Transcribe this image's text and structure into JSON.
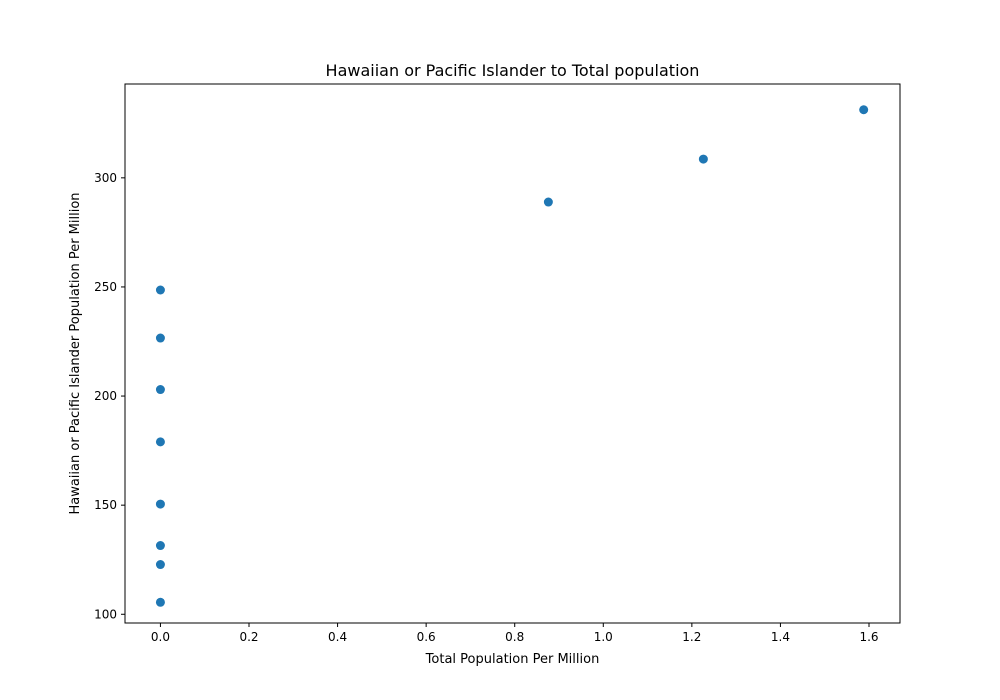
{
  "chart_data": {
    "type": "scatter",
    "title": "Hawaiian or Pacific Islander to Total population",
    "xlabel": "Total Population Per Million",
    "ylabel": "Hawaiian or Pacific Islander Population Per Million",
    "xlim": [
      -0.08,
      1.67
    ],
    "ylim": [
      96,
      343
    ],
    "xticks": [
      0.0,
      0.2,
      0.4,
      0.6,
      0.8,
      1.0,
      1.2,
      1.4,
      1.6
    ],
    "xtick_labels": [
      "0.0",
      "0.2",
      "0.4",
      "0.6",
      "0.8",
      "1.0",
      "1.2",
      "1.4",
      "1.6"
    ],
    "yticks": [
      100,
      150,
      200,
      250,
      300
    ],
    "ytick_labels": [
      "100",
      "150",
      "200",
      "250",
      "300"
    ],
    "grid": false,
    "marker_color": "#1f77b4",
    "points": [
      {
        "x": 0.0,
        "y": 105.5
      },
      {
        "x": 0.0,
        "y": 122.8
      },
      {
        "x": 0.0,
        "y": 131.5
      },
      {
        "x": 0.0,
        "y": 150.5
      },
      {
        "x": 0.0,
        "y": 179.0
      },
      {
        "x": 0.0,
        "y": 203.0
      },
      {
        "x": 0.0,
        "y": 226.6
      },
      {
        "x": 0.0,
        "y": 248.6
      },
      {
        "x": 0.876,
        "y": 288.9
      },
      {
        "x": 1.226,
        "y": 308.6
      },
      {
        "x": 1.588,
        "y": 331.2
      }
    ]
  }
}
